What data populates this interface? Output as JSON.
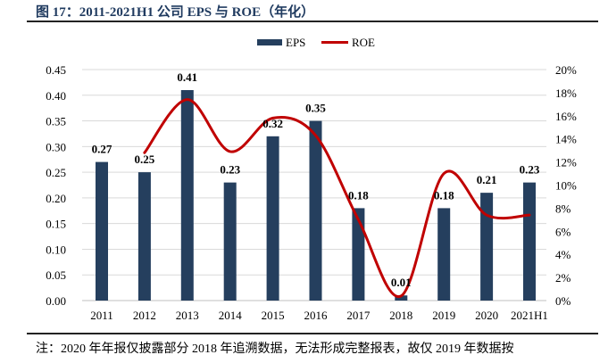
{
  "title": "图 17：2011-2021H1 公司 EPS 与 ROE（年化）",
  "note": "注：2020 年年报仅披露部分 2018 年追溯数据，无法形成完整报表，故仅 2019 年数据按",
  "chart_data": {
    "type": "bar+line",
    "categories": [
      "2011",
      "2012",
      "2013",
      "2014",
      "2015",
      "2016",
      "2017",
      "2018",
      "2019",
      "2020",
      "2021H1"
    ],
    "series": [
      {
        "name": "EPS",
        "type": "bar",
        "axis": "left",
        "color": "#253f5e",
        "values": [
          0.27,
          0.25,
          0.41,
          0.23,
          0.32,
          0.35,
          0.18,
          0.01,
          0.18,
          0.21,
          0.23
        ],
        "data_labels": [
          "0.27",
          "0.25",
          "0.41",
          "0.23",
          "0.32",
          "0.35",
          "0.18",
          "0.01",
          "0.18",
          "0.21",
          "0.23"
        ]
      },
      {
        "name": "ROE",
        "type": "line",
        "smooth": true,
        "axis": "right",
        "color": "#c00000",
        "values": [
          null,
          12.8,
          17.4,
          12.9,
          15.8,
          14.3,
          7.0,
          0.4,
          11.0,
          7.4,
          7.4
        ]
      }
    ],
    "left_axis": {
      "min": 0,
      "max": 0.45,
      "step": 0.05,
      "ticks": [
        "0.00",
        "0.05",
        "0.10",
        "0.15",
        "0.20",
        "0.25",
        "0.30",
        "0.35",
        "0.40",
        "0.45"
      ]
    },
    "right_axis": {
      "min": 0,
      "max": 20,
      "step": 2,
      "ticks": [
        "0%",
        "2%",
        "4%",
        "6%",
        "8%",
        "10%",
        "12%",
        "14%",
        "16%",
        "18%",
        "20%"
      ]
    },
    "grid": true,
    "legend": "top-center"
  }
}
